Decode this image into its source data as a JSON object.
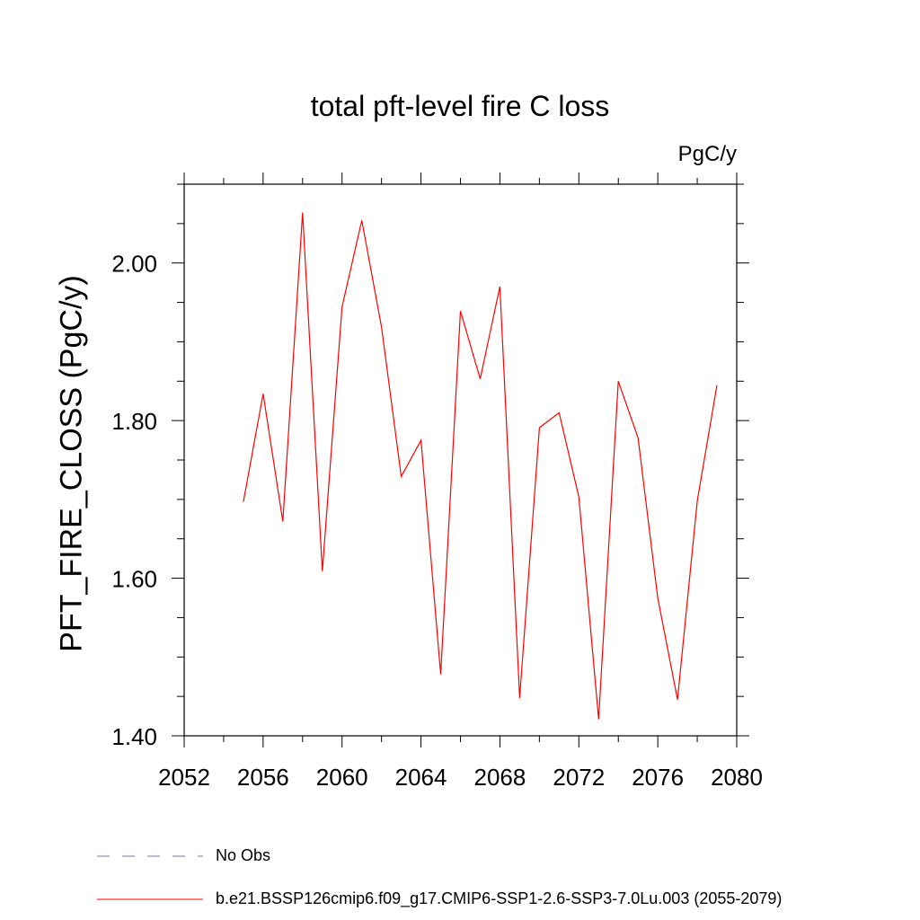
{
  "chart_data": {
    "type": "line",
    "title": "total pft-level fire C loss",
    "units_label": "PgC/y",
    "ylabel": "PFT_FIRE_CLOSS  (PgC/y)",
    "xlabel": "",
    "xlim": [
      2052,
      2080
    ],
    "ylim": [
      1.4,
      2.1
    ],
    "xticks": [
      2052,
      2056,
      2060,
      2064,
      2068,
      2072,
      2076,
      2080
    ],
    "xtick_labels": [
      "2052",
      "2056",
      "2060",
      "2064",
      "2068",
      "2072",
      "2076",
      "2080"
    ],
    "yticks": [
      1.4,
      1.6,
      1.8,
      2.0
    ],
    "ytick_labels": [
      "1.40",
      "1.60",
      "1.80",
      "2.00"
    ],
    "grid": false,
    "legend_position": "bottom",
    "series": [
      {
        "name": "b.e21.BSSP126cmip6.f09_g17.CMIP6-SSP1-2.6-SSP3-7.0Lu.003 (2055-2079)",
        "color": "#ff0000",
        "x": [
          2055,
          2056,
          2057,
          2058,
          2059,
          2060,
          2061,
          2062,
          2063,
          2064,
          2065,
          2066,
          2067,
          2068,
          2069,
          2070,
          2071,
          2072,
          2073,
          2074,
          2075,
          2076,
          2077,
          2078,
          2079
        ],
        "y": [
          1.697,
          1.834,
          1.672,
          2.064,
          1.609,
          1.944,
          2.054,
          1.919,
          1.729,
          1.775,
          1.478,
          1.939,
          1.853,
          1.97,
          1.448,
          1.791,
          1.81,
          1.703,
          1.421,
          1.85,
          1.778,
          1.575,
          1.446,
          1.698,
          1.845
        ]
      }
    ],
    "legend": [
      {
        "label": "No Obs",
        "color": "#7b6fb0",
        "style": "dashed"
      },
      {
        "label": "b.e21.BSSP126cmip6.f09_g17.CMIP6-SSP1-2.6-SSP3-7.0Lu.003 (2055-2079)",
        "color": "#ff0000",
        "style": "solid"
      }
    ]
  }
}
